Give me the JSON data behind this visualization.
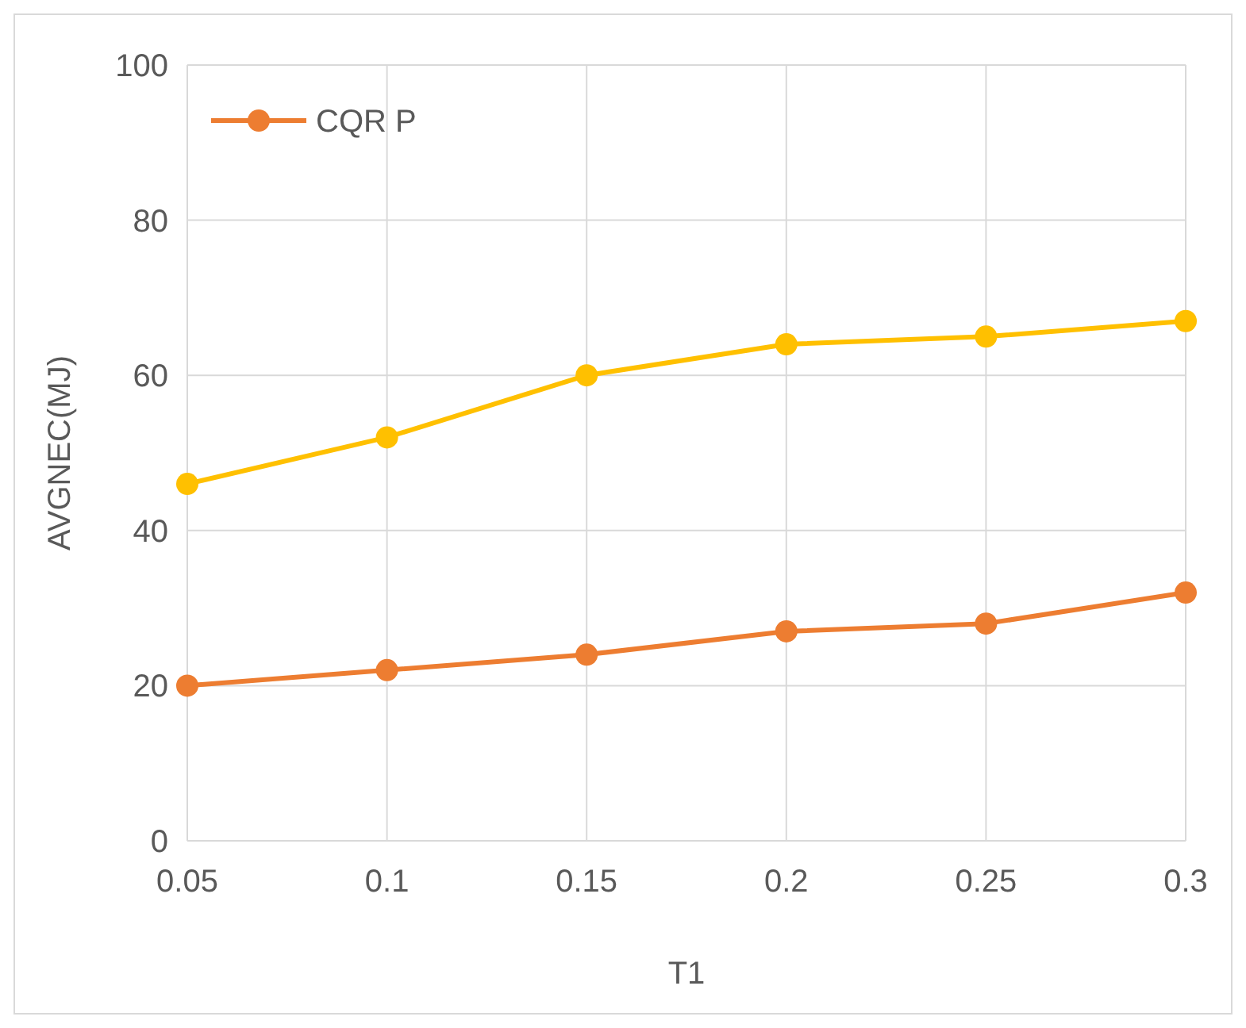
{
  "chart_data": {
    "type": "line",
    "xlabel": "T1",
    "ylabel": "AVGNEC(MJ)",
    "x": [
      0.05,
      0.1,
      0.15,
      0.2,
      0.25,
      0.3
    ],
    "series": [
      {
        "name": "CQR P",
        "color": "#ed7d31",
        "values": [
          20,
          22,
          24,
          27,
          28,
          32
        ]
      },
      {
        "color": "#ffc000",
        "values": [
          46,
          52,
          60,
          64,
          65,
          67
        ]
      }
    ],
    "xlim": [
      0.05,
      0.3
    ],
    "xticks": [
      0.05,
      0.1,
      0.15,
      0.2,
      0.25,
      0.3
    ],
    "ylim": [
      0,
      100
    ],
    "yticks": [
      0,
      20,
      40,
      60,
      80,
      100
    ],
    "grid": true,
    "legend": "top left",
    "marker": "circle",
    "line_style": "solid"
  }
}
